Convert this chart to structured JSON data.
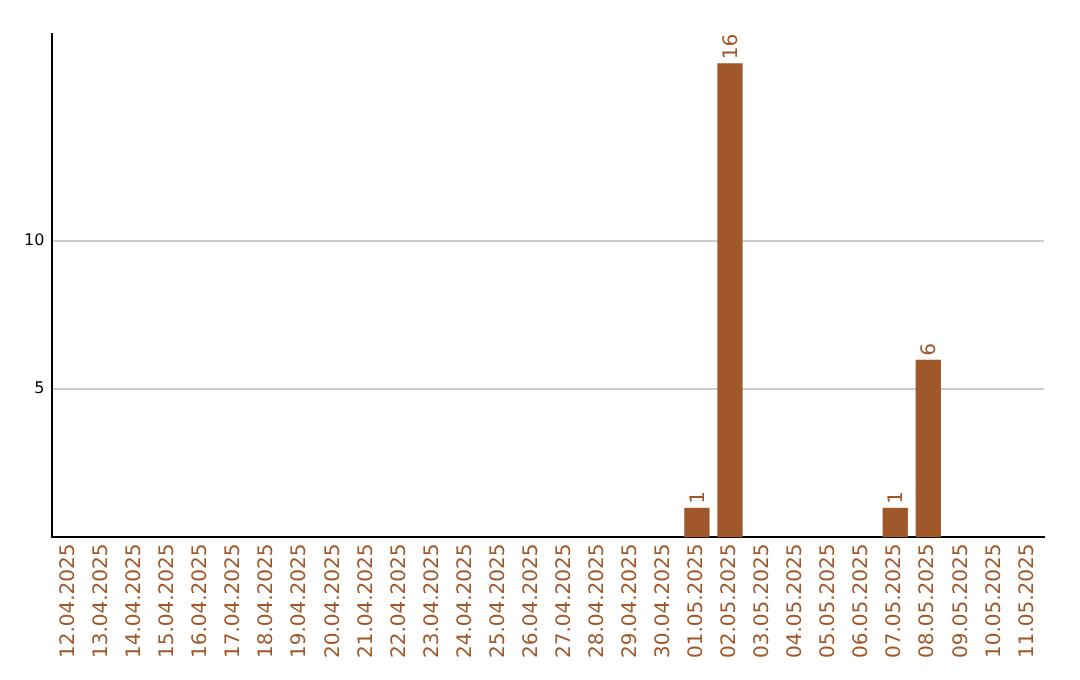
{
  "chart_data": {
    "type": "bar",
    "categories": [
      "12.04.2025",
      "13.04.2025",
      "14.04.2025",
      "15.04.2025",
      "16.04.2025",
      "17.04.2025",
      "18.04.2025",
      "19.04.2025",
      "20.04.2025",
      "21.04.2025",
      "22.04.2025",
      "23.04.2025",
      "24.04.2025",
      "25.04.2025",
      "26.04.2025",
      "27.04.2025",
      "28.04.2025",
      "29.04.2025",
      "30.04.2025",
      "01.05.2025",
      "02.05.2025",
      "03.05.2025",
      "04.05.2025",
      "05.05.2025",
      "06.05.2025",
      "07.05.2025",
      "08.05.2025",
      "09.05.2025",
      "10.05.2025",
      "11.05.2025"
    ],
    "values": [
      0,
      0,
      0,
      0,
      0,
      0,
      0,
      0,
      0,
      0,
      0,
      0,
      0,
      0,
      0,
      0,
      0,
      0,
      0,
      1,
      16,
      0,
      0,
      0,
      0,
      1,
      6,
      0,
      0,
      0
    ],
    "value_labels": [
      null,
      null,
      null,
      null,
      null,
      null,
      null,
      null,
      null,
      null,
      null,
      null,
      null,
      null,
      null,
      null,
      null,
      null,
      null,
      "1",
      "16",
      null,
      null,
      null,
      null,
      "1",
      "6",
      null,
      null,
      null
    ],
    "color": "#a0582a",
    "ylim": [
      0,
      17
    ],
    "yticks": [
      5,
      10
    ],
    "grid": "y",
    "legend": false
  }
}
